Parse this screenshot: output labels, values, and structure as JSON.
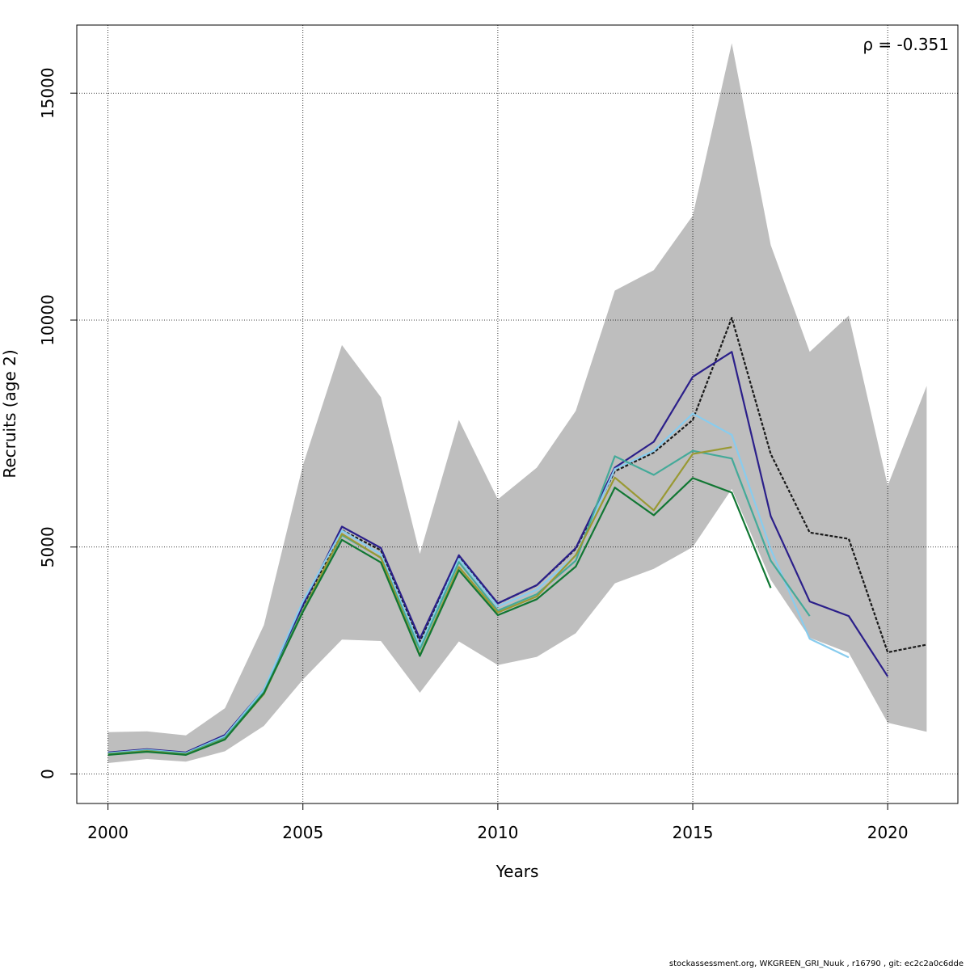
{
  "chart_data": {
    "type": "line",
    "xlabel": "Years",
    "ylabel": "Recruits (age 2)",
    "annotation": "ρ = -0.351",
    "xlim": [
      1999.2,
      2021.8
    ],
    "ylim": [
      -650,
      16500
    ],
    "x_ticks": [
      2000,
      2005,
      2010,
      2015,
      2020
    ],
    "y_ticks": [
      0,
      5000,
      10000,
      15000
    ],
    "grid": true,
    "band": {
      "name": "confidence interval",
      "color": "#bebebe",
      "x": [
        2000,
        2001,
        2002,
        2003,
        2004,
        2005,
        2006,
        2007,
        2008,
        2009,
        2010,
        2011,
        2012,
        2013,
        2014,
        2015,
        2016,
        2017,
        2018,
        2019,
        2020,
        2021
      ],
      "lower": [
        240,
        330,
        270,
        500,
        1060,
        2080,
        2960,
        2930,
        1790,
        2920,
        2400,
        2580,
        3100,
        4200,
        4520,
        5000,
        6280,
        4280,
        3000,
        2670,
        1130,
        930
      ],
      "upper": [
        920,
        940,
        850,
        1450,
        3280,
        6800,
        9450,
        8300,
        4850,
        7800,
        6050,
        6750,
        8000,
        10650,
        11100,
        12300,
        16100,
        11650,
        9300,
        10100,
        6350,
        8550
      ]
    },
    "series": [
      {
        "color": "#1a1a1a",
        "dashed": true,
        "x": [
          2000,
          2001,
          2002,
          2003,
          2004,
          2005,
          2006,
          2007,
          2008,
          2009,
          2010,
          2011,
          2012,
          2013,
          2014,
          2015,
          2016,
          2017,
          2018,
          2019,
          2020,
          2021
        ],
        "values": [
          470,
          540,
          470,
          850,
          1850,
          3680,
          5370,
          4930,
          2920,
          4770,
          3760,
          4160,
          4960,
          6670,
          7080,
          7800,
          10050,
          7050,
          5320,
          5180,
          2680,
          2850
        ]
      },
      {
        "color": "#2b1f8a",
        "dashed": false,
        "x": [
          2000,
          2001,
          2002,
          2003,
          2004,
          2005,
          2006,
          2007,
          2008,
          2009,
          2010,
          2011,
          2012,
          2013,
          2014,
          2015,
          2016,
          2017,
          2018,
          2019,
          2020
        ],
        "values": [
          475,
          545,
          475,
          860,
          1860,
          3720,
          5450,
          4980,
          2980,
          4820,
          3760,
          4160,
          4980,
          6750,
          7320,
          8750,
          9300,
          5680,
          3800,
          3480,
          2150
        ]
      },
      {
        "color": "#88ccee",
        "dashed": false,
        "x": [
          2000,
          2001,
          2002,
          2003,
          2004,
          2005,
          2006,
          2007,
          2008,
          2009,
          2010,
          2011,
          2012,
          2013,
          2014,
          2015,
          2016,
          2017,
          2018,
          2019
        ],
        "values": [
          460,
          530,
          460,
          830,
          1860,
          3800,
          5360,
          4840,
          2820,
          4740,
          3690,
          4060,
          4820,
          6720,
          7120,
          7940,
          7470,
          4950,
          2980,
          2570
        ]
      },
      {
        "color": "#44aa99",
        "dashed": false,
        "x": [
          2000,
          2001,
          2002,
          2003,
          2004,
          2005,
          2006,
          2007,
          2008,
          2009,
          2010,
          2011,
          2012,
          2013,
          2014,
          2015,
          2016,
          2017,
          2018
        ],
        "values": [
          445,
          515,
          445,
          800,
          1800,
          3620,
          5260,
          4770,
          2740,
          4670,
          3600,
          3960,
          4700,
          7000,
          6590,
          7120,
          6950,
          4700,
          3480
        ]
      },
      {
        "color": "#999933",
        "dashed": false,
        "x": [
          2000,
          2001,
          2002,
          2003,
          2004,
          2005,
          2006,
          2007,
          2008,
          2009,
          2010,
          2011,
          2012,
          2013,
          2014,
          2015,
          2016
        ],
        "values": [
          430,
          500,
          430,
          770,
          1760,
          3590,
          5290,
          4760,
          2620,
          4560,
          3560,
          3910,
          4820,
          6530,
          5810,
          7050,
          7200
        ]
      },
      {
        "color": "#117733",
        "dashed": false,
        "x": [
          2000,
          2001,
          2002,
          2003,
          2004,
          2005,
          2006,
          2007,
          2008,
          2009,
          2010,
          2011,
          2012,
          2013,
          2014,
          2015,
          2016,
          2017
        ],
        "values": [
          420,
          490,
          420,
          760,
          1780,
          3570,
          5160,
          4660,
          2600,
          4490,
          3500,
          3850,
          4570,
          6310,
          5700,
          6520,
          6200,
          4100
        ]
      }
    ]
  },
  "footer": "stockassessment.org, WKGREEN_GRI_Nuuk , r16790 , git: ec2c2a0c6dde"
}
